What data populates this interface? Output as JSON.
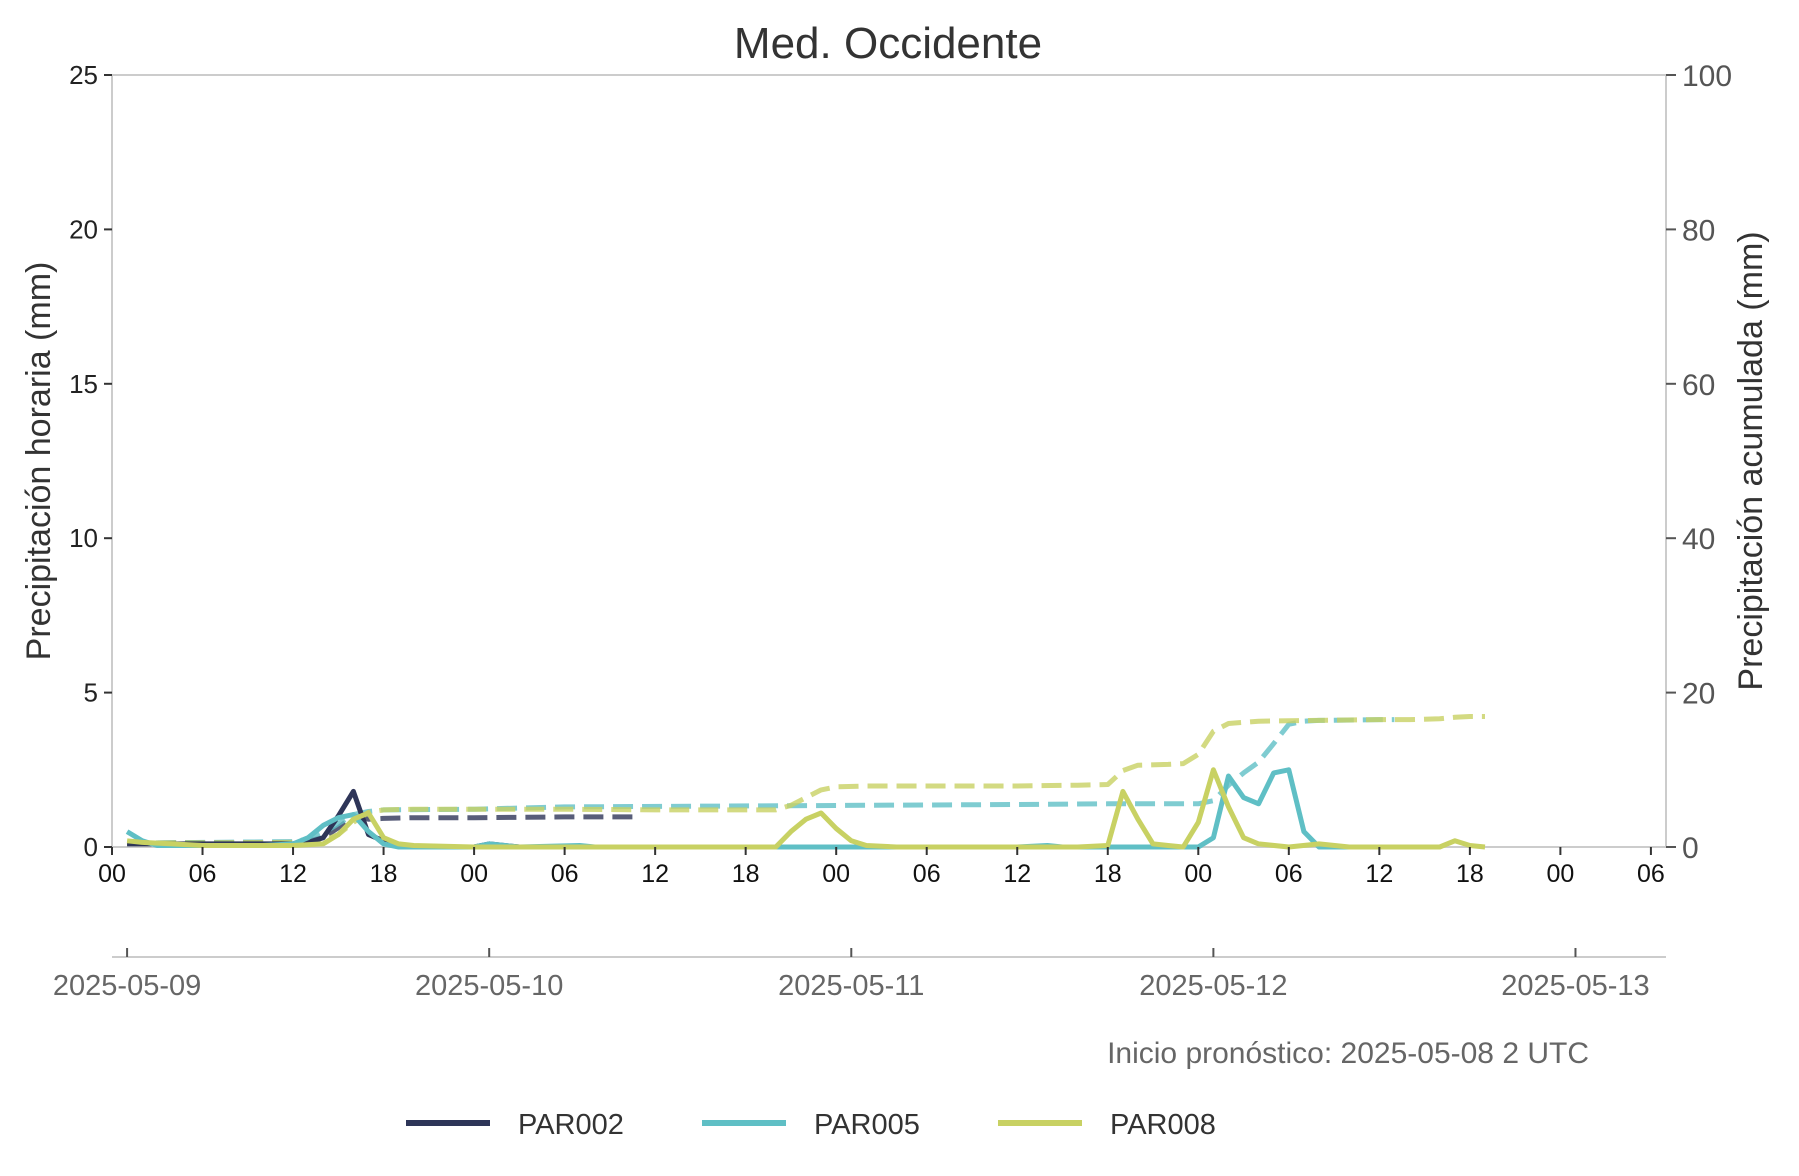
{
  "chart_data": {
    "type": "line",
    "title": "Med. Occidente",
    "ylabel": "Precipitación horaria (mm)",
    "y2label": "Precipitación acumulada (mm)",
    "ylim": [
      0,
      25
    ],
    "y2lim": [
      0,
      100
    ],
    "y_ticks": [
      "0",
      "5",
      "10",
      "15",
      "20",
      "25"
    ],
    "y2_ticks": [
      "0",
      "20",
      "40",
      "60",
      "80",
      "100"
    ],
    "hour_ticks": [
      "00",
      "06",
      "12",
      "18",
      "00",
      "06",
      "12",
      "18",
      "00",
      "06",
      "12",
      "18",
      "00",
      "06",
      "12",
      "18",
      "00",
      "06"
    ],
    "date_ticks": [
      "2025-05-09",
      "2025-05-10",
      "2025-05-11",
      "2025-05-12",
      "2025-05-13"
    ],
    "x_unit": "hours since 2025-05-09 00 UTC",
    "xlim": [
      0,
      103
    ],
    "annotation": "Inicio pronóstico: 2025-05-08 2 UTC",
    "legend_position": "bottom-center",
    "grid": false,
    "series": [
      {
        "name": "PAR002",
        "color": "#2e3558",
        "hourly": [
          [
            1,
            0.1
          ],
          [
            2,
            0.1
          ],
          [
            4,
            0.1
          ],
          [
            6,
            0.1
          ],
          [
            8,
            0.1
          ],
          [
            10,
            0.1
          ],
          [
            12,
            0.1
          ],
          [
            13,
            0.15
          ],
          [
            14,
            0.3
          ],
          [
            15,
            1.0
          ],
          [
            16,
            1.8
          ],
          [
            17,
            0.4
          ],
          [
            18,
            0.2
          ],
          [
            19,
            0.05
          ],
          [
            20,
            0.0
          ],
          [
            22,
            0.0
          ],
          [
            24,
            0.0
          ],
          [
            25,
            0.1
          ],
          [
            26,
            0.05
          ],
          [
            27,
            0.0
          ],
          [
            30,
            0.0
          ],
          [
            35,
            0.0
          ]
        ],
        "accum": [
          [
            1,
            0.5
          ],
          [
            12,
            0.6
          ],
          [
            13,
            0.8
          ],
          [
            14,
            1.2
          ],
          [
            15,
            2.5
          ],
          [
            16,
            4.0
          ],
          [
            17,
            3.6
          ],
          [
            18,
            3.7
          ],
          [
            20,
            3.8
          ],
          [
            24,
            3.8
          ],
          [
            30,
            3.9
          ],
          [
            35,
            3.9
          ]
        ]
      },
      {
        "name": "PAR005",
        "color": "#5fbfc5",
        "hourly": [
          [
            1,
            0.5
          ],
          [
            2,
            0.2
          ],
          [
            3,
            0.05
          ],
          [
            6,
            0.05
          ],
          [
            10,
            0.05
          ],
          [
            12,
            0.1
          ],
          [
            13,
            0.3
          ],
          [
            14,
            0.7
          ],
          [
            15,
            0.95
          ],
          [
            16,
            1.05
          ],
          [
            17,
            0.5
          ],
          [
            18,
            0.1
          ],
          [
            19,
            0.0
          ],
          [
            24,
            0.0
          ],
          [
            25,
            0.1
          ],
          [
            27,
            0.0
          ],
          [
            31,
            0.05
          ],
          [
            32,
            0.0
          ],
          [
            40,
            0.0
          ],
          [
            50,
            0.0
          ],
          [
            60,
            0.0
          ],
          [
            62,
            0.05
          ],
          [
            63,
            0.0
          ],
          [
            71,
            0.0
          ],
          [
            72,
            0.0
          ],
          [
            73,
            0.3
          ],
          [
            74,
            2.3
          ],
          [
            75,
            1.6
          ],
          [
            76,
            1.4
          ],
          [
            77,
            2.4
          ],
          [
            78,
            2.5
          ],
          [
            79,
            0.5
          ],
          [
            80,
            0.0
          ],
          [
            84,
            0.0
          ],
          [
            85,
            0.0
          ]
        ],
        "accum": [
          [
            1,
            0.5
          ],
          [
            12,
            0.7
          ],
          [
            13,
            1.0
          ],
          [
            14,
            1.8
          ],
          [
            15,
            3.0
          ],
          [
            16,
            4.2
          ],
          [
            17,
            4.6
          ],
          [
            18,
            4.8
          ],
          [
            24,
            4.9
          ],
          [
            30,
            5.2
          ],
          [
            40,
            5.3
          ],
          [
            50,
            5.4
          ],
          [
            60,
            5.5
          ],
          [
            66,
            5.6
          ],
          [
            72,
            5.6
          ],
          [
            73,
            6.0
          ],
          [
            74,
            8.0
          ],
          [
            75,
            9.6
          ],
          [
            76,
            11.0
          ],
          [
            77,
            13.4
          ],
          [
            78,
            15.9
          ],
          [
            79,
            16.3
          ],
          [
            80,
            16.4
          ],
          [
            84,
            16.5
          ],
          [
            85,
            16.5
          ]
        ]
      },
      {
        "name": "PAR008",
        "color": "#c8d163",
        "hourly": [
          [
            1,
            0.2
          ],
          [
            2,
            0.15
          ],
          [
            4,
            0.1
          ],
          [
            6,
            0.05
          ],
          [
            10,
            0.05
          ],
          [
            12,
            0.05
          ],
          [
            14,
            0.1
          ],
          [
            15,
            0.4
          ],
          [
            16,
            0.9
          ],
          [
            17,
            1.1
          ],
          [
            18,
            0.3
          ],
          [
            19,
            0.1
          ],
          [
            20,
            0.05
          ],
          [
            24,
            0.0
          ],
          [
            30,
            0.0
          ],
          [
            36,
            0.0
          ],
          [
            42,
            0.0
          ],
          [
            44,
            0.0
          ],
          [
            45,
            0.5
          ],
          [
            46,
            0.9
          ],
          [
            47,
            1.1
          ],
          [
            48,
            0.6
          ],
          [
            49,
            0.2
          ],
          [
            50,
            0.05
          ],
          [
            52,
            0.0
          ],
          [
            56,
            0.0
          ],
          [
            60,
            0.0
          ],
          [
            64,
            0.0
          ],
          [
            66,
            0.05
          ],
          [
            67,
            1.8
          ],
          [
            68,
            0.9
          ],
          [
            69,
            0.1
          ],
          [
            70,
            0.05
          ],
          [
            71,
            0.0
          ],
          [
            72,
            0.8
          ],
          [
            73,
            2.5
          ],
          [
            74,
            1.3
          ],
          [
            75,
            0.3
          ],
          [
            76,
            0.1
          ],
          [
            78,
            0.0
          ],
          [
            80,
            0.1
          ],
          [
            82,
            0.0
          ],
          [
            86,
            0.0
          ],
          [
            88,
            0.0
          ],
          [
            89,
            0.2
          ],
          [
            90,
            0.05
          ],
          [
            91,
            0.0
          ]
        ],
        "accum": [
          [
            1,
            0.5
          ],
          [
            12,
            0.6
          ],
          [
            14,
            0.8
          ],
          [
            15,
            1.6
          ],
          [
            16,
            3.2
          ],
          [
            17,
            4.5
          ],
          [
            18,
            4.8
          ],
          [
            20,
            4.9
          ],
          [
            24,
            4.9
          ],
          [
            30,
            4.9
          ],
          [
            36,
            4.8
          ],
          [
            44,
            4.8
          ],
          [
            45,
            5.4
          ],
          [
            46,
            6.4
          ],
          [
            47,
            7.4
          ],
          [
            48,
            7.8
          ],
          [
            50,
            7.9
          ],
          [
            56,
            7.9
          ],
          [
            60,
            7.9
          ],
          [
            64,
            8.0
          ],
          [
            66,
            8.1
          ],
          [
            67,
            9.9
          ],
          [
            68,
            10.6
          ],
          [
            70,
            10.7
          ],
          [
            71,
            10.8
          ],
          [
            72,
            12.0
          ],
          [
            73,
            15.0
          ],
          [
            74,
            16.0
          ],
          [
            76,
            16.3
          ],
          [
            80,
            16.4
          ],
          [
            84,
            16.5
          ],
          [
            86,
            16.5
          ],
          [
            88,
            16.6
          ],
          [
            89,
            16.8
          ],
          [
            90,
            16.9
          ],
          [
            91,
            16.9
          ]
        ]
      }
    ]
  }
}
